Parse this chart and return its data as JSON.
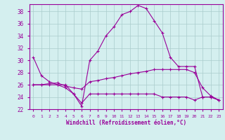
{
  "x": [
    0,
    1,
    2,
    3,
    4,
    5,
    6,
    7,
    8,
    9,
    10,
    11,
    12,
    13,
    14,
    15,
    16,
    17,
    18,
    19,
    20,
    21,
    22,
    23
  ],
  "curve_top": [
    30.5,
    27.5,
    26.5,
    26.0,
    26.0,
    24.5,
    22.5,
    30.0,
    31.5,
    34.0,
    35.5,
    37.5,
    38.0,
    39.0,
    38.5,
    36.5,
    34.5,
    30.5,
    29.0,
    29.0,
    29.0,
    24.0,
    24.0,
    23.5
  ],
  "curve_mid": [
    26.0,
    26.0,
    26.2,
    26.3,
    25.8,
    25.5,
    25.3,
    26.5,
    26.7,
    27.0,
    27.2,
    27.5,
    27.8,
    28.0,
    28.2,
    28.5,
    28.5,
    28.5,
    28.5,
    28.5,
    28.0,
    25.5,
    24.2,
    23.5
  ],
  "curve_bot": [
    26.0,
    26.0,
    26.0,
    26.0,
    25.5,
    24.5,
    23.0,
    24.5,
    24.5,
    24.5,
    24.5,
    24.5,
    24.5,
    24.5,
    24.5,
    24.5,
    24.0,
    24.0,
    24.0,
    24.0,
    23.5,
    24.0,
    24.0,
    23.5
  ],
  "color": "#990099",
  "bg_color": "#d4efef",
  "grid_color": "#aacccc",
  "xlabel": "Windchill (Refroidissement éolien,°C)",
  "ylim": [
    22,
    39
  ],
  "xlim": [
    -0.5,
    23.5
  ],
  "yticks": [
    22,
    24,
    26,
    28,
    30,
    32,
    34,
    36,
    38
  ],
  "xticks": [
    0,
    1,
    2,
    3,
    4,
    5,
    6,
    7,
    8,
    9,
    10,
    11,
    12,
    13,
    14,
    15,
    16,
    17,
    18,
    19,
    20,
    21,
    22,
    23
  ]
}
